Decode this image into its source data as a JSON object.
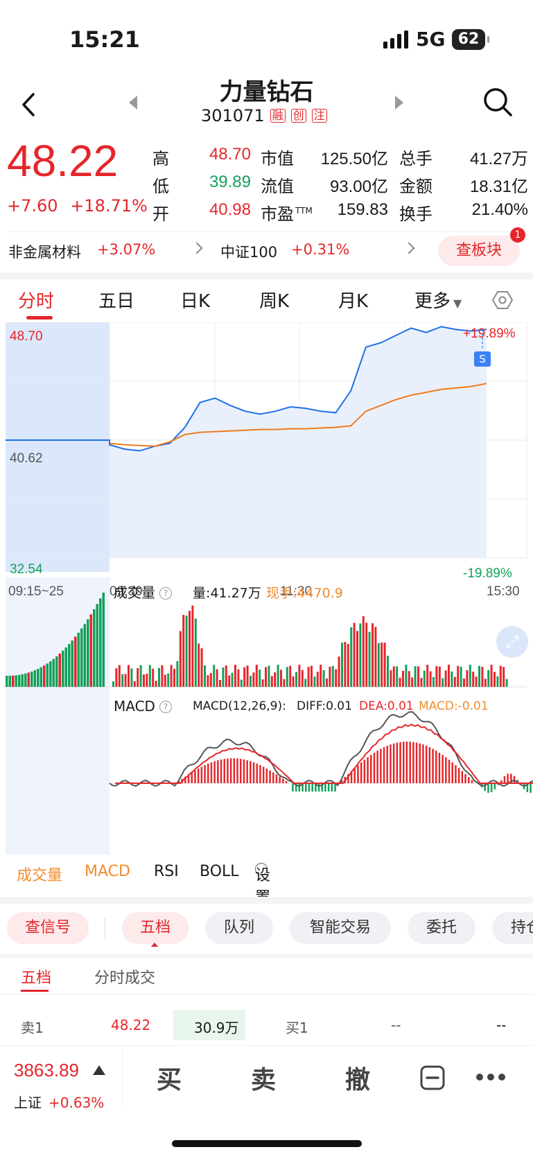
{
  "status_bar": {
    "time": "15:21",
    "network": "5G",
    "battery": "62"
  },
  "header": {
    "name": "力量钻石",
    "code": "301071",
    "tags": [
      "融",
      "创",
      "注"
    ]
  },
  "quote": {
    "price": "48.22",
    "change": "+7.60",
    "change_pct": "+18.71%",
    "rows": [
      [
        {
          "label": "高",
          "value": "48.70",
          "color": "red"
        },
        {
          "label": "市值",
          "value": "125.50亿"
        },
        {
          "label": "总手",
          "value": "41.27万"
        }
      ],
      [
        {
          "label": "低",
          "value": "39.89",
          "color": "green"
        },
        {
          "label": "流值",
          "value": "93.00亿"
        },
        {
          "label": "金额",
          "value": "18.31亿"
        }
      ],
      [
        {
          "label": "开",
          "value": "40.98",
          "color": "red"
        },
        {
          "label": "市盈",
          "sup": "TTM",
          "value": "159.83"
        },
        {
          "label": "换手",
          "value": "21.40%"
        }
      ]
    ]
  },
  "sector": {
    "industry_name": "非金属材料",
    "industry_change": "+3.07%",
    "index_name": "中证100",
    "index_change": "+0.31%",
    "board_button": "查板块",
    "badge": "1"
  },
  "chart_tabs": [
    "分时",
    "五日",
    "日K",
    "周K",
    "月K",
    "更多"
  ],
  "chart_data": {
    "type": "line",
    "price_axis": {
      "high": "48.70",
      "prev_close": "40.62",
      "low": "32.54",
      "up_pct": "+19.89%",
      "down_pct": "-19.89%"
    },
    "time_axis": [
      "09:15~25",
      "09:30",
      "11:30",
      "15:30"
    ],
    "marker": "S",
    "price_series": [
      40.62,
      40.62,
      40.62,
      40.62,
      40.62,
      40.3,
      40.0,
      39.89,
      40.2,
      40.4,
      41.5,
      43.2,
      43.5,
      43.0,
      42.6,
      42.4,
      42.6,
      42.9,
      42.8,
      42.6,
      42.5,
      44.0,
      47.0,
      47.3,
      47.8,
      48.3,
      48.0,
      48.4,
      48.2,
      48.1,
      48.22
    ],
    "avg_series": [
      40.62,
      40.62,
      40.62,
      40.62,
      40.62,
      40.4,
      40.3,
      40.25,
      40.2,
      40.5,
      41.0,
      41.15,
      41.2,
      41.25,
      41.3,
      41.35,
      41.35,
      41.4,
      41.4,
      41.45,
      41.5,
      41.6,
      42.6,
      43.0,
      43.4,
      43.7,
      43.9,
      44.1,
      44.2,
      44.3,
      44.5
    ],
    "volume_panel": {
      "title": "成交量",
      "total": "量:41.27万",
      "current": "现手:4470.9"
    },
    "macd_panel": {
      "title": "MACD",
      "params": "MACD(12,26,9):",
      "diff": "DIFF:0.01",
      "dea": "DEA:0.01",
      "macd": "MACD:-0.01"
    }
  },
  "indicator_tabs": [
    "成交量",
    "MACD",
    "RSI",
    "BOLL",
    "设置"
  ],
  "func_tabs": [
    "查信号",
    "五档",
    "队列",
    "智能交易",
    "委托",
    "持仓"
  ],
  "level_tabs": [
    "五档",
    "分时成交"
  ],
  "order_book": {
    "sell_label": "卖1",
    "sell_price": "48.22",
    "sell_volume": "30.9万",
    "buy_label": "买1",
    "buy_price": "--",
    "buy_volume": "--"
  },
  "bottom_bar": {
    "index_value": "3863.89",
    "index_name": "上证",
    "index_change": "+0.63%",
    "buy": "买",
    "sell": "卖",
    "cancel": "撤"
  },
  "colors": {
    "up": "#e5262b",
    "down": "#12a15a",
    "line": "#1f6fe6",
    "avg": "#f07a1b",
    "accent_orange": "#f08c2e"
  }
}
